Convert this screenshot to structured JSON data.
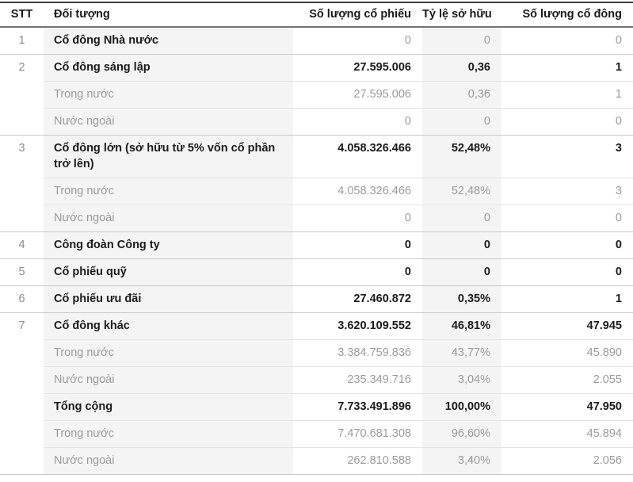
{
  "table": {
    "columns": [
      {
        "label": "STT"
      },
      {
        "label": "Đối tượng"
      },
      {
        "label": "Số lượng cổ phiếu"
      },
      {
        "label": "Tỷ lệ sở hữu"
      },
      {
        "label": "Số lượng cổ đông"
      }
    ],
    "rows": [
      {
        "stt": "1",
        "label": "Cổ đông Nhà nước",
        "shares": "0",
        "ratio": "0",
        "holders": "0"
      },
      {
        "stt": "2",
        "label": "Cổ đông sáng lập",
        "shares": "27.595.006",
        "ratio": "0,36",
        "holders": "1"
      },
      {
        "stt": "",
        "label": "Trong nước",
        "shares": "27.595.006",
        "ratio": "0,36",
        "holders": "1"
      },
      {
        "stt": "",
        "label": "Nước ngoài",
        "shares": "0",
        "ratio": "0",
        "holders": "0"
      },
      {
        "stt": "3",
        "label": "Cổ đông lớn (sở hữu từ 5% vốn cổ phần trở lên)",
        "shares": "4.058.326.466",
        "ratio": "52,48%",
        "holders": "3"
      },
      {
        "stt": "",
        "label": "Trong nước",
        "shares": "4.058.326.466",
        "ratio": "52,48%",
        "holders": "3"
      },
      {
        "stt": "",
        "label": "Nước ngoài",
        "shares": "0",
        "ratio": "0",
        "holders": "0"
      },
      {
        "stt": "4",
        "label": "Công đoàn Công ty",
        "shares": "0",
        "ratio": "0",
        "holders": "0"
      },
      {
        "stt": "5",
        "label": "Cổ phiếu quỹ",
        "shares": "0",
        "ratio": "0",
        "holders": "0"
      },
      {
        "stt": "6",
        "label": "Cổ phiếu ưu đãi",
        "shares": "27.460.872",
        "ratio": "0,35%",
        "holders": "1"
      },
      {
        "stt": "7",
        "label": "Cổ đông khác",
        "shares": "3.620.109.552",
        "ratio": "46,81%",
        "holders": "47.945"
      },
      {
        "stt": "",
        "label": "Trong nước",
        "shares": "3.384.759.836",
        "ratio": "43,77%",
        "holders": "45.890"
      },
      {
        "stt": "",
        "label": "Nước ngoài",
        "shares": "235.349.716",
        "ratio": "3,04%",
        "holders": "2.055"
      },
      {
        "stt": "",
        "label": "Tổng cộng",
        "shares": "7.733.491.896",
        "ratio": "100,00%",
        "holders": "47.950"
      },
      {
        "stt": "",
        "label": "Trong nước",
        "shares": "7.470.681.308",
        "ratio": "96,60%",
        "holders": "45.894"
      },
      {
        "stt": "",
        "label": "Nước ngoài",
        "shares": "262.810.588",
        "ratio": "3,40%",
        "holders": "2.056"
      }
    ],
    "colors": {
      "main_text": "#1b1b1b",
      "muted_text": "#9a9a9a",
      "shaded_column_bg": "#f4f4f4",
      "group_separator": "#c9c9c9",
      "sub_separator": "#e3e3e3",
      "header_top_rule": "#3c3c3c",
      "header_bottom_rule": "#747474"
    }
  }
}
